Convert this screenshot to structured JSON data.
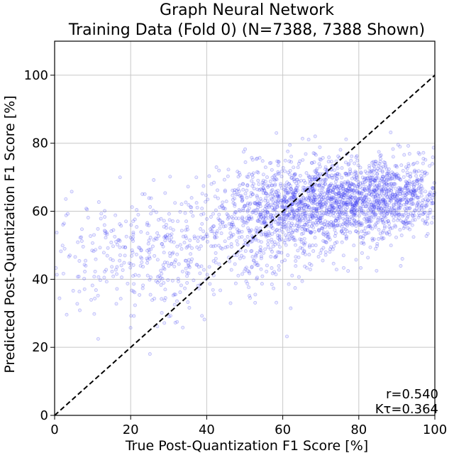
{
  "chart_data": {
    "type": "scatter",
    "title": [
      "Graph Neural Network",
      "Training Data (Fold 0) (N=7388, 7388 Shown)"
    ],
    "xlabel": "True Post-Quantization F1 Score [%]",
    "ylabel": "Predicted Post-Quantization F1 Score [%]",
    "xlim": [
      0,
      100
    ],
    "ylim": [
      0,
      110
    ],
    "xticks": [
      0,
      20,
      40,
      60,
      80,
      100
    ],
    "yticks": [
      0,
      20,
      40,
      60,
      80,
      100
    ],
    "xtick_labels": [
      "0",
      "20",
      "40",
      "60",
      "80",
      "100"
    ],
    "ytick_labels": [
      "0",
      "20",
      "40",
      "60",
      "80",
      "100"
    ],
    "grid": true,
    "reference_line": {
      "style": "dashed",
      "color": "#000000",
      "from": [
        0,
        0
      ],
      "to": [
        100,
        100
      ]
    },
    "point_color": "#3b3bf2",
    "n_points": 7388,
    "point_summary": "Dense cloud of semi-transparent points concentrated between x=50-100 and y=50-75, with a sparser tail towards low x at y 35-60.",
    "series": [
      {
        "cluster_centers": [
          {
            "x": 75,
            "y": 63,
            "sx": 12,
            "sy": 6,
            "weight": 0.45
          },
          {
            "x": 58,
            "y": 57,
            "sx": 10,
            "sy": 8,
            "weight": 0.25
          },
          {
            "x": 90,
            "y": 66,
            "sx": 6,
            "sy": 5,
            "weight": 0.15
          },
          {
            "x": 25,
            "y": 47,
            "sx": 14,
            "sy": 9,
            "weight": 0.15
          }
        ]
      }
    ],
    "annotations": [
      {
        "text": "r=0.540",
        "position": "bottom-right"
      },
      {
        "text": "Kτ=0.364",
        "position": "bottom-right"
      }
    ]
  }
}
